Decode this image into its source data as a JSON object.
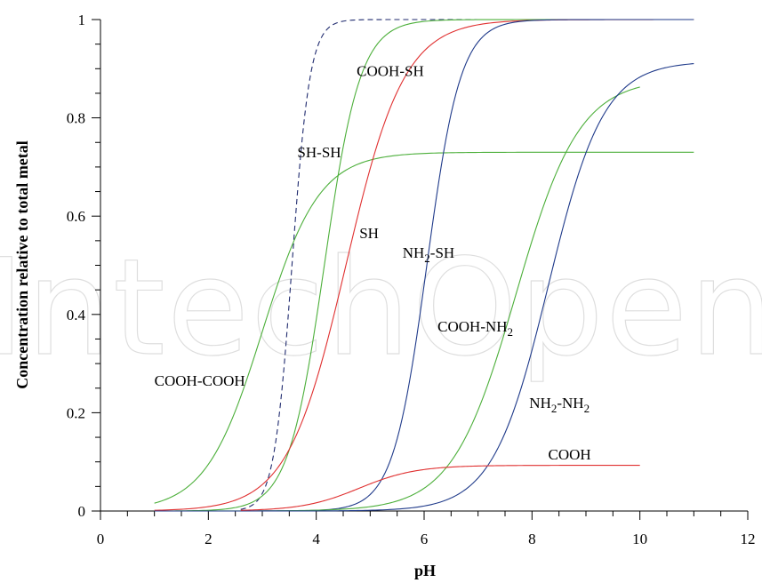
{
  "chart_data": {
    "type": "line",
    "watermark": "IntechOpen",
    "xlabel": "pH",
    "ylabel": "Concentration relative to total metal",
    "xlim": [
      0,
      12
    ],
    "ylim": [
      0,
      1
    ],
    "x_ticks": [
      0,
      2,
      4,
      6,
      8,
      10,
      12
    ],
    "y_ticks": [
      0,
      0.2,
      0.4,
      0.6,
      0.8,
      1
    ],
    "y_tick_labels": [
      "0",
      "0.2",
      "0.4",
      "0.6",
      "0.8",
      "1"
    ],
    "colors": {
      "green": "#4caf3a",
      "red": "#e03030",
      "blue": "#1f3a8a",
      "navy_dashed": "#1f2a6e"
    },
    "series": [
      {
        "name": "SH-SH",
        "color": "#1f2a6e",
        "dashed": true,
        "x_start": 2.6,
        "x_end": 11,
        "max": 1.0,
        "pH50": 3.55,
        "k": 6.0,
        "label": "SH-SH",
        "label_x": 3.65,
        "label_y": 0.72
      },
      {
        "name": "COOH-SH",
        "color": "#4caf3a",
        "dashed": false,
        "x_start": 1.0,
        "x_end": 11,
        "max": 1.0,
        "pH50": 4.15,
        "k": 3.0,
        "label": "COOH-SH",
        "label_x": 4.75,
        "label_y": 0.885
      },
      {
        "name": "COOH-COOH",
        "color": "#4caf3a",
        "dashed": false,
        "x_start": 1.0,
        "x_end": 11,
        "max": 0.73,
        "pH50": 3.0,
        "k": 1.9,
        "label": "COOH-COOH",
        "label_x": 1.0,
        "label_y": 0.255
      },
      {
        "name": "SH",
        "color": "#e03030",
        "dashed": false,
        "x_start": 1.0,
        "x_end": 11,
        "max": 1.0,
        "pH50": 4.55,
        "k": 1.85,
        "label": "SH",
        "label_x": 4.8,
        "label_y": 0.555
      },
      {
        "name": "NH2-SH",
        "color": "#1f3a8a",
        "dashed": false,
        "x_start": 1.0,
        "x_end": 11,
        "max": 1.0,
        "pH50": 6.05,
        "k": 3.2,
        "label": "NH",
        "label_sub": "2",
        "label_suffix": "-SH",
        "label_x": 5.6,
        "label_y": 0.515
      },
      {
        "name": "COOH-NH2",
        "color": "#4caf3a",
        "dashed": false,
        "x_start": 1.0,
        "x_end": 10,
        "max": 0.88,
        "pH50": 7.7,
        "k": 1.7,
        "label": "COOH-NH",
        "label_sub": "2",
        "label_suffix": "",
        "label_x": 6.25,
        "label_y": 0.365
      },
      {
        "name": "NH2-NH2",
        "color": "#1f3a8a",
        "dashed": false,
        "x_start": 1.0,
        "x_end": 11,
        "max": 0.915,
        "pH50": 8.3,
        "k": 1.95,
        "label": "NH",
        "label_sub": "2",
        "label_suffix": "-NH",
        "label_sub2": "2",
        "label_x": 7.95,
        "label_y": 0.21
      },
      {
        "name": "COOH",
        "color": "#e03030",
        "dashed": false,
        "x_start": 2.6,
        "x_end": 10,
        "max": 0.093,
        "pH50": 4.8,
        "k": 1.9,
        "label": "COOH",
        "label_x": 8.3,
        "label_y": 0.105
      }
    ]
  }
}
